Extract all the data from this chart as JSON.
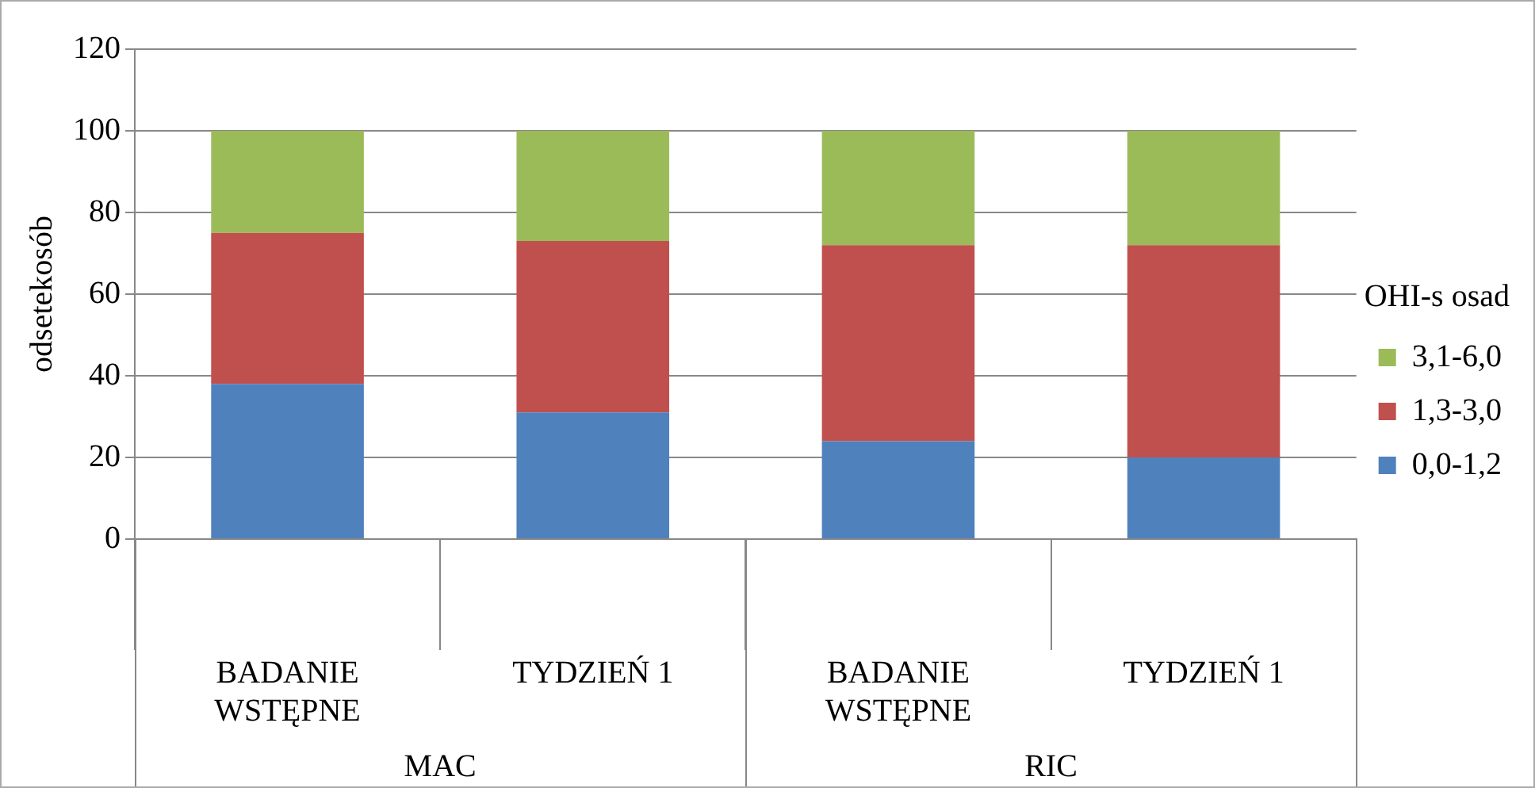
{
  "chart_data": {
    "type": "bar",
    "stacked": true,
    "ylabel": "odsetekosób",
    "legend_title": "OHI-s osad",
    "legend": "right",
    "grid": "y",
    "categories": [
      "BADANIE WSTĘPNE",
      "TYDZIEŃ 1",
      "BADANIE WSTĘPNE",
      "TYDZIEŃ 1"
    ],
    "annotations": [
      "MAC",
      "RIC"
    ],
    "ylim": [
      0,
      120
    ],
    "yticks": [
      0,
      20,
      40,
      60,
      80,
      100,
      120
    ],
    "series": [
      {
        "name": "0,0-1,2",
        "color": "#4f81bd",
        "values": [
          38,
          31,
          24,
          20
        ]
      },
      {
        "name": "1,3-3,0",
        "color": "#c0504d",
        "values": [
          37,
          42,
          48,
          52
        ]
      },
      {
        "name": "3,1-6,0",
        "color": "#9bbb59",
        "values": [
          25,
          27,
          28,
          28
        ]
      }
    ]
  }
}
